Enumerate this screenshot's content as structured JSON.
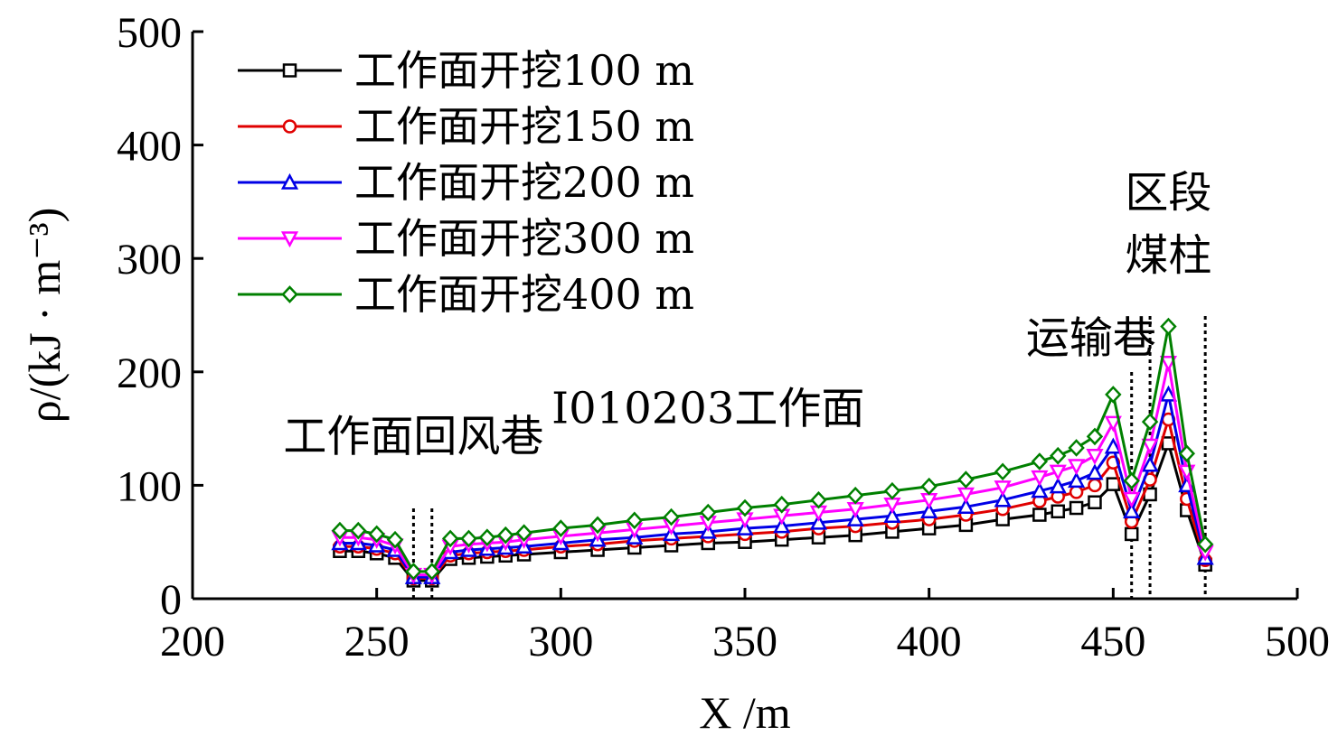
{
  "chart_data": {
    "type": "line",
    "xlabel": "X /m",
    "ylabel": "ρ/(kJ · m⁻³)",
    "xlim": [
      200,
      500
    ],
    "ylim": [
      0,
      500
    ],
    "xticks": [
      200,
      250,
      300,
      350,
      400,
      450,
      500
    ],
    "yticks": [
      0,
      100,
      200,
      300,
      400,
      500
    ],
    "legend": {
      "position": "top-left",
      "entries": [
        "工作面开挖100 m",
        "工作面开挖150 m",
        "工作面开挖200 m",
        "工作面开挖300 m",
        "工作面开挖400 m"
      ]
    },
    "annotations": [
      {
        "text": "工作面回风巷",
        "x": 260,
        "y": 130
      },
      {
        "text": "I010203工作面",
        "x": 340,
        "y": 155
      },
      {
        "text": "运输巷",
        "x": 444,
        "y": 217
      },
      {
        "text": "区段",
        "x": 465,
        "y": 345
      },
      {
        "text": "煤柱",
        "x": 465,
        "y": 290
      }
    ],
    "boundaries": [
      260,
      265,
      455,
      460,
      475
    ],
    "x": [
      240,
      245,
      250,
      255,
      260,
      265,
      270,
      275,
      280,
      285,
      290,
      300,
      310,
      320,
      330,
      340,
      350,
      360,
      370,
      380,
      390,
      400,
      410,
      420,
      430,
      435,
      440,
      445,
      450,
      455,
      460,
      465,
      470,
      475
    ],
    "series": [
      {
        "name": "工作面开挖100 m",
        "color": "#000000",
        "marker": "square",
        "values": [
          42,
          42,
          40,
          36,
          16,
          16,
          35,
          36,
          37,
          38,
          39,
          41,
          43,
          45,
          47,
          49,
          50,
          52,
          54,
          56,
          59,
          62,
          65,
          70,
          74,
          77,
          80,
          85,
          101,
          57,
          92,
          137,
          78,
          30
        ]
      },
      {
        "name": "工作面开挖150 m",
        "color": "#e00000",
        "marker": "circle",
        "values": [
          46,
          46,
          44,
          40,
          18,
          18,
          38,
          40,
          41,
          42,
          43,
          46,
          48,
          51,
          53,
          55,
          57,
          59,
          62,
          64,
          67,
          70,
          74,
          79,
          86,
          90,
          94,
          100,
          120,
          68,
          105,
          158,
          88,
          34
        ]
      },
      {
        "name": "工作面开挖200 m",
        "color": "#0000e6",
        "marker": "triangle-up",
        "values": [
          49,
          49,
          47,
          43,
          19,
          19,
          41,
          43,
          44,
          45,
          46,
          49,
          52,
          54,
          57,
          59,
          62,
          64,
          67,
          70,
          73,
          77,
          81,
          87,
          95,
          99,
          104,
          111,
          134,
          77,
          118,
          180,
          100,
          36
        ]
      },
      {
        "name": "工作面开挖300 m",
        "color": "#ff00ff",
        "marker": "triangle-down",
        "values": [
          54,
          54,
          52,
          47,
          21,
          21,
          46,
          48,
          49,
          50,
          52,
          55,
          58,
          61,
          64,
          67,
          70,
          73,
          76,
          79,
          83,
          87,
          92,
          98,
          107,
          112,
          117,
          126,
          155,
          88,
          135,
          208,
          112,
          41
        ]
      },
      {
        "name": "工作面开挖400 m",
        "color": "#008000",
        "marker": "diamond",
        "values": [
          60,
          60,
          57,
          52,
          24,
          24,
          53,
          53,
          54,
          56,
          58,
          62,
          65,
          69,
          72,
          76,
          80,
          83,
          87,
          91,
          95,
          99,
          105,
          112,
          121,
          126,
          133,
          143,
          180,
          104,
          156,
          240,
          128,
          48
        ]
      }
    ]
  }
}
